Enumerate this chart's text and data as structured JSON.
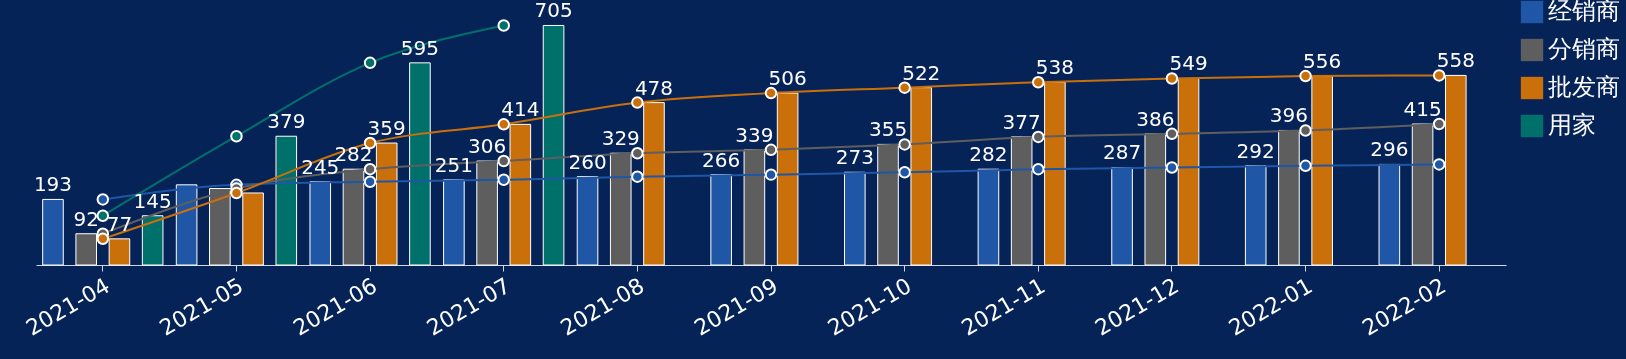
{
  "chart_data": {
    "type": "bar",
    "categories": [
      "2021-04",
      "2021-05",
      "2021-06",
      "2021-07",
      "2021-08",
      "2021-09",
      "2021-10",
      "2021-11",
      "2021-12",
      "2022-01",
      "2022-02"
    ],
    "ylim": [
      0,
      780
    ],
    "tick_labels": "x",
    "grid": false,
    "legend": "top right",
    "marker": "circle",
    "series": [
      {
        "name": "经销商",
        "color": "#1f56a5",
        "values": [
          193,
          236,
          245,
          251,
          260,
          266,
          273,
          282,
          287,
          292,
          296
        ],
        "value_labels": [
          "193",
          null,
          "245",
          "251",
          "260",
          "266",
          "273",
          "282",
          "287",
          "292",
          "296"
        ]
      },
      {
        "name": "分销商",
        "color": "#5e5e5e",
        "values": [
          92,
          225,
          282,
          306,
          329,
          339,
          355,
          377,
          386,
          396,
          415
        ],
        "value_labels": [
          "92",
          null,
          "282",
          "306",
          "329",
          "339",
          "355",
          "377",
          "386",
          "396",
          "415"
        ]
      },
      {
        "name": "批发商",
        "color": "#c9700b",
        "values": [
          77,
          212,
          359,
          414,
          478,
          506,
          522,
          538,
          549,
          556,
          558
        ],
        "value_labels": [
          "77",
          null,
          "359",
          "414",
          "478",
          "506",
          "522",
          "538",
          "549",
          "556",
          "558"
        ]
      },
      {
        "name": "用家",
        "color": "#00706b",
        "values": [
          145,
          379,
          595,
          705,
          null,
          null,
          null,
          null,
          null,
          null,
          null
        ],
        "value_labels": [
          "145",
          "379",
          "595",
          "705",
          null,
          null,
          null,
          null,
          null,
          null,
          null
        ]
      },
      {
        "type": "line",
        "color": "#1f56a5",
        "values": [
          193,
          236,
          245,
          251,
          260,
          266,
          273,
          282,
          287,
          292,
          296
        ]
      },
      {
        "type": "line",
        "color": "#5e5e5e",
        "values": [
          92,
          225,
          282,
          306,
          329,
          339,
          355,
          377,
          386,
          396,
          415
        ]
      },
      {
        "type": "line",
        "color": "#c9700b",
        "values": [
          77,
          212,
          359,
          414,
          478,
          506,
          522,
          538,
          549,
          556,
          558
        ]
      },
      {
        "type": "line",
        "color": "#00706b",
        "values": [
          145,
          379,
          595,
          705,
          null,
          null,
          null,
          null,
          null,
          null,
          null
        ]
      }
    ]
  }
}
